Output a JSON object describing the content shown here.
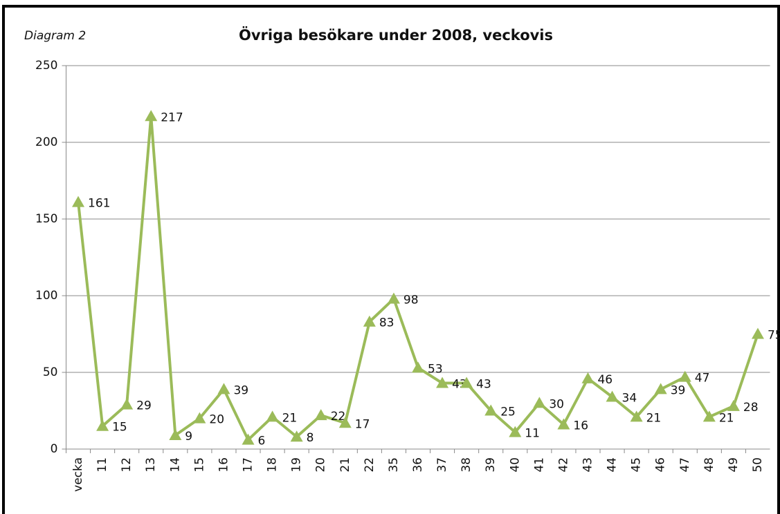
{
  "chart_data": {
    "type": "line",
    "title": "Övriga besökare under 2008, veckovis",
    "annotation": "Diagram 2",
    "categories": [
      "vecka",
      "11",
      "12",
      "13",
      "14",
      "15",
      "16",
      "17",
      "18",
      "19",
      "20",
      "21",
      "22",
      "35",
      "36",
      "37",
      "38",
      "39",
      "40",
      "41",
      "42",
      "43",
      "44",
      "45",
      "46",
      "47",
      "48",
      "49",
      "50"
    ],
    "series": [
      {
        "name": "Övriga besökare",
        "color": "#9bbb59",
        "values": [
          161,
          15,
          29,
          217,
          9,
          20,
          39,
          6,
          21,
          8,
          22,
          17,
          83,
          98,
          53,
          43,
          43,
          25,
          11,
          30,
          16,
          46,
          34,
          21,
          39,
          47,
          21,
          28,
          75
        ]
      }
    ],
    "ylim": [
      0,
      250
    ],
    "yticks": [
      0,
      50,
      100,
      150,
      200,
      250
    ],
    "grid": true,
    "legend": false
  }
}
